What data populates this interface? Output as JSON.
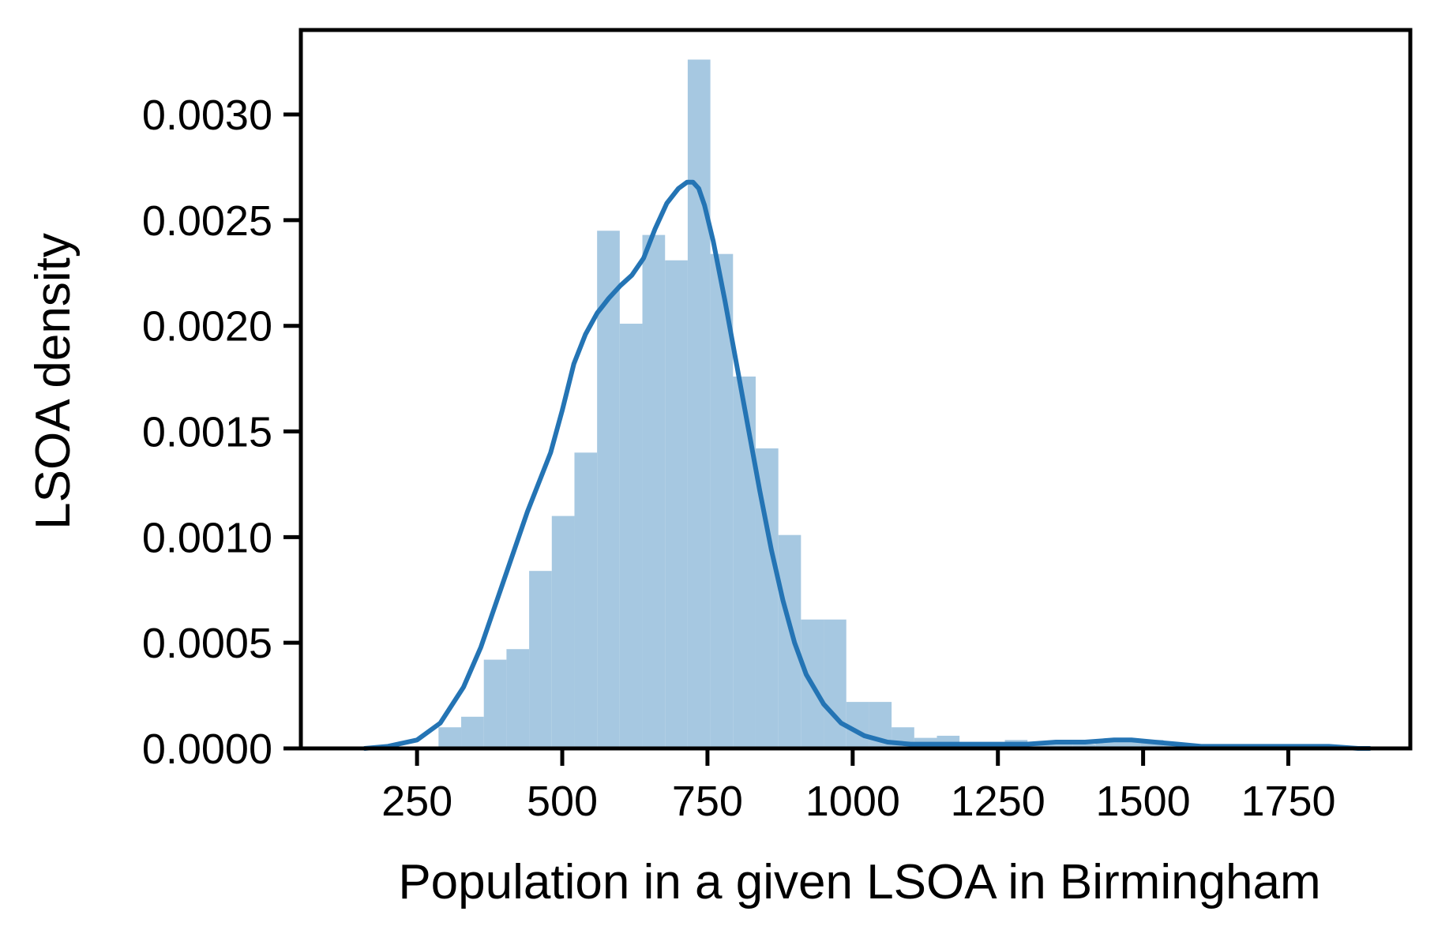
{
  "chart_data": {
    "type": "histogram",
    "xlabel": "Population in a given LSOA in Birmingham",
    "ylabel": "LSOA density",
    "xlim": [
      50,
      1960
    ],
    "ylim": [
      0,
      0.0034
    ],
    "x_ticks": [
      250,
      500,
      750,
      1000,
      1250,
      1500,
      1750
    ],
    "x_tick_labels": [
      "250",
      "500",
      "750",
      "1000",
      "1250",
      "1500",
      "1750"
    ],
    "y_ticks": [
      0,
      0.0005,
      0.001,
      0.0015,
      0.002,
      0.0025,
      0.003
    ],
    "y_tick_labels": [
      "0.0000",
      "0.0005",
      "0.0010",
      "0.0015",
      "0.0020",
      "0.0025",
      "0.0030"
    ],
    "grid": false,
    "legend": "none",
    "colors": {
      "bars": "#a6c8e1",
      "kde_line": "#2474b4",
      "axes": "#000000"
    },
    "histogram": {
      "bin_width": 39,
      "bins": [
        {
          "x0": 287,
          "x1": 326,
          "density": 0.0001
        },
        {
          "x0": 326,
          "x1": 365,
          "density": 0.00015
        },
        {
          "x0": 365,
          "x1": 404,
          "density": 0.00042
        },
        {
          "x0": 404,
          "x1": 443,
          "density": 0.00047
        },
        {
          "x0": 443,
          "x1": 482,
          "density": 0.00084
        },
        {
          "x0": 482,
          "x1": 521,
          "density": 0.0011
        },
        {
          "x0": 521,
          "x1": 560,
          "density": 0.0014
        },
        {
          "x0": 560,
          "x1": 599,
          "density": 0.00245
        },
        {
          "x0": 599,
          "x1": 638,
          "density": 0.00201
        },
        {
          "x0": 638,
          "x1": 677,
          "density": 0.00243
        },
        {
          "x0": 677,
          "x1": 716,
          "density": 0.00231
        },
        {
          "x0": 716,
          "x1": 755,
          "density": 0.00326
        },
        {
          "x0": 755,
          "x1": 794,
          "density": 0.00234
        },
        {
          "x0": 794,
          "x1": 833,
          "density": 0.00176
        },
        {
          "x0": 833,
          "x1": 872,
          "density": 0.00142
        },
        {
          "x0": 872,
          "x1": 911,
          "density": 0.00101
        },
        {
          "x0": 911,
          "x1": 950,
          "density": 0.00061
        },
        {
          "x0": 950,
          "x1": 989,
          "density": 0.00061
        },
        {
          "x0": 989,
          "x1": 1028,
          "density": 0.00022
        },
        {
          "x0": 1028,
          "x1": 1067,
          "density": 0.00022
        },
        {
          "x0": 1067,
          "x1": 1106,
          "density": 0.0001
        },
        {
          "x0": 1106,
          "x1": 1145,
          "density": 5e-05
        },
        {
          "x0": 1145,
          "x1": 1184,
          "density": 6e-05
        },
        {
          "x0": 1184,
          "x1": 1223,
          "density": 2e-05
        },
        {
          "x0": 1223,
          "x1": 1262,
          "density": 2e-05
        },
        {
          "x0": 1262,
          "x1": 1301,
          "density": 4e-05
        },
        {
          "x0": 1301,
          "x1": 1340,
          "density": 2e-05
        },
        {
          "x0": 1340,
          "x1": 1379,
          "density": 2e-05
        },
        {
          "x0": 1379,
          "x1": 1418,
          "density": 2e-05
        },
        {
          "x0": 1418,
          "x1": 1457,
          "density": 4e-05
        },
        {
          "x0": 1457,
          "x1": 1496,
          "density": 4e-05
        },
        {
          "x0": 1496,
          "x1": 1535,
          "density": 4e-05
        },
        {
          "x0": 1535,
          "x1": 1574,
          "density": 2e-05
        },
        {
          "x0": 1574,
          "x1": 1613,
          "density": 1e-05
        },
        {
          "x0": 1613,
          "x1": 1652,
          "density": 1e-05
        },
        {
          "x0": 1652,
          "x1": 1691,
          "density": 1e-05
        },
        {
          "x0": 1691,
          "x1": 1730,
          "density": 1e-05
        },
        {
          "x0": 1730,
          "x1": 1769,
          "density": 2e-05
        },
        {
          "x0": 1769,
          "x1": 1808,
          "density": 2e-05
        }
      ]
    },
    "kde": {
      "x": [
        160,
        200,
        250,
        290,
        330,
        360,
        400,
        440,
        480,
        500,
        520,
        540,
        560,
        580,
        600,
        620,
        640,
        660,
        680,
        700,
        715,
        725,
        735,
        745,
        760,
        780,
        800,
        820,
        840,
        860,
        880,
        900,
        920,
        950,
        980,
        1020,
        1060,
        1100,
        1150,
        1200,
        1250,
        1300,
        1350,
        1400,
        1450,
        1480,
        1520,
        1560,
        1600,
        1650,
        1700,
        1750,
        1780,
        1820,
        1870,
        1890
      ],
      "y": [
        0.0,
        1e-05,
        4e-05,
        0.00012,
        0.00029,
        0.00048,
        0.0008,
        0.00112,
        0.0014,
        0.0016,
        0.00182,
        0.00196,
        0.00206,
        0.00213,
        0.00219,
        0.00224,
        0.00232,
        0.00246,
        0.00258,
        0.00265,
        0.00268,
        0.00268,
        0.00265,
        0.00257,
        0.0024,
        0.00212,
        0.00182,
        0.00152,
        0.00122,
        0.00094,
        0.0007,
        0.0005,
        0.00035,
        0.00021,
        0.00012,
        6e-05,
        3e-05,
        2e-05,
        2e-05,
        2e-05,
        2e-05,
        2e-05,
        3e-05,
        3e-05,
        4e-05,
        4e-05,
        3e-05,
        2e-05,
        1e-05,
        1e-05,
        1e-05,
        1e-05,
        1e-05,
        1e-05,
        0.0,
        0.0
      ]
    }
  }
}
